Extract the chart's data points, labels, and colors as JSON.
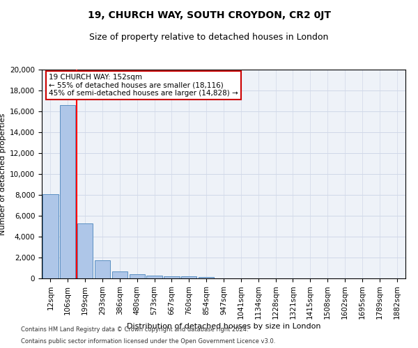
{
  "title": "19, CHURCH WAY, SOUTH CROYDON, CR2 0JT",
  "subtitle": "Size of property relative to detached houses in London",
  "xlabel": "Distribution of detached houses by size in London",
  "ylabel": "Number of detached properties",
  "footnote1": "Contains HM Land Registry data © Crown copyright and database right 2024.",
  "footnote2": "Contains public sector information licensed under the Open Government Licence v3.0.",
  "bar_labels": [
    "12sqm",
    "106sqm",
    "199sqm",
    "293sqm",
    "386sqm",
    "480sqm",
    "573sqm",
    "667sqm",
    "760sqm",
    "854sqm",
    "947sqm",
    "1041sqm",
    "1134sqm",
    "1228sqm",
    "1321sqm",
    "1415sqm",
    "1508sqm",
    "1602sqm",
    "1695sqm",
    "1789sqm",
    "1882sqm"
  ],
  "bar_values": [
    8100,
    16600,
    5300,
    1750,
    680,
    380,
    290,
    220,
    190,
    120,
    0,
    0,
    0,
    0,
    0,
    0,
    0,
    0,
    0,
    0,
    0
  ],
  "bar_color": "#aec6e8",
  "bar_edge_color": "#5a8fc2",
  "ylim": [
    0,
    20000
  ],
  "yticks": [
    0,
    2000,
    4000,
    6000,
    8000,
    10000,
    12000,
    14000,
    16000,
    18000,
    20000
  ],
  "property_line_x": 1.5,
  "annotation_text": "19 CHURCH WAY: 152sqm\n← 55% of detached houses are smaller (18,116)\n45% of semi-detached houses are larger (14,828) →",
  "annotation_box_color": "#ffffff",
  "annotation_box_edge": "#cc0000",
  "grid_color": "#d0d8e8",
  "bg_color": "#eef2f8",
  "title_fontsize": 10,
  "subtitle_fontsize": 9,
  "ylabel_fontsize": 8,
  "xlabel_fontsize": 8,
  "tick_fontsize": 7.5,
  "annotation_fontsize": 7.5,
  "footnote_fontsize": 6
}
